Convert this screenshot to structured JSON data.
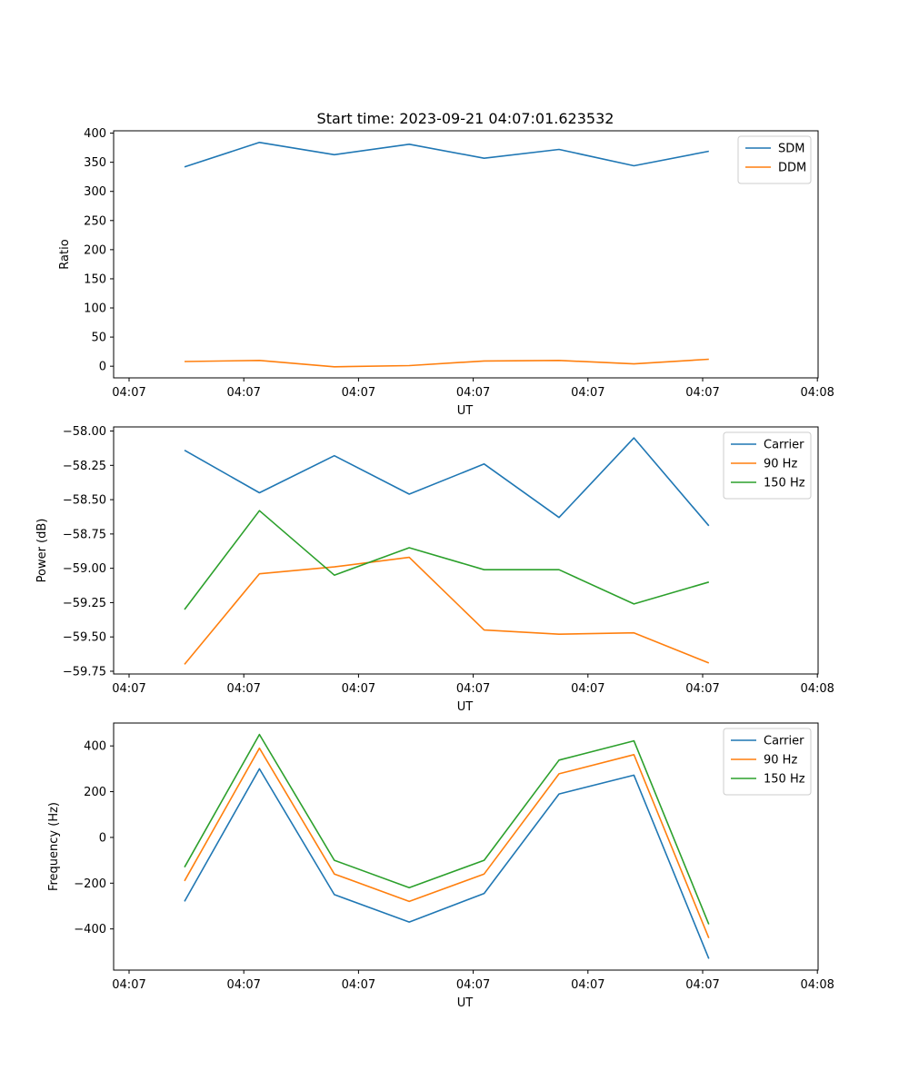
{
  "figure_title": "Start time: 2023-09-21 04:07:01.623532",
  "colors": {
    "c0": "#1f77b4",
    "c1": "#ff7f0e",
    "c2": "#2ca02c"
  },
  "chart_data": [
    {
      "type": "line",
      "title": "Start time: 2023-09-21 04:07:01.623532",
      "xlabel": "UT",
      "ylabel": "Ratio",
      "xticks": [
        "04:07",
        "04:07",
        "04:07",
        "04:07",
        "04:07",
        "04:07",
        "04:08"
      ],
      "xlim": [
        -0.5,
        9.5
      ],
      "ylim": [
        -20,
        404
      ],
      "yticks": [
        0,
        50,
        100,
        150,
        200,
        250,
        300,
        350,
        400
      ],
      "ytick_labels": [
        "0",
        "50",
        "100",
        "150",
        "200",
        "250",
        "300",
        "350",
        "400"
      ],
      "x": [
        0.3,
        1.6,
        2.9,
        4.2,
        5.5,
        6.8,
        8.1,
        9.4
      ],
      "legend": "upper right",
      "series": [
        {
          "name": "SDM",
          "color": "#1f77b4",
          "values": [
            342,
            384,
            363,
            381,
            357,
            372,
            344,
            369
          ]
        },
        {
          "name": "DDM",
          "color": "#ff7f0e",
          "values": [
            8,
            10,
            -1,
            1,
            9,
            10,
            4,
            12
          ]
        }
      ]
    },
    {
      "type": "line",
      "xlabel": "UT",
      "ylabel": "Power (dB)",
      "xticks": [
        "04:07",
        "04:07",
        "04:07",
        "04:07",
        "04:07",
        "04:07",
        "04:08"
      ],
      "xlim": [
        -0.5,
        9.5
      ],
      "ylim": [
        -59.77,
        -57.97
      ],
      "yticks": [
        -58.0,
        -58.25,
        -58.5,
        -58.75,
        -59.0,
        -59.25,
        -59.5,
        -59.75
      ],
      "ytick_labels": [
        "−58.00",
        "−58.25",
        "−58.50",
        "−58.75",
        "−59.00",
        "−59.25",
        "−59.50",
        "−59.75"
      ],
      "x": [
        0.3,
        1.6,
        2.9,
        4.2,
        5.5,
        6.8,
        8.1,
        9.4
      ],
      "legend": "upper right",
      "series": [
        {
          "name": "Carrier",
          "color": "#1f77b4",
          "values": [
            -58.14,
            -58.45,
            -58.18,
            -58.46,
            -58.24,
            -58.63,
            -58.05,
            -58.69
          ]
        },
        {
          "name": "90 Hz",
          "color": "#ff7f0e",
          "values": [
            -59.7,
            -59.04,
            -58.99,
            -58.92,
            -59.45,
            -59.48,
            -59.47,
            -59.69
          ]
        },
        {
          "name": "150 Hz",
          "color": "#2ca02c",
          "values": [
            -59.3,
            -58.58,
            -59.05,
            -58.85,
            -59.01,
            -59.01,
            -59.26,
            -59.1
          ]
        }
      ]
    },
    {
      "type": "line",
      "xlabel": "UT",
      "ylabel": "Frequency (Hz)",
      "xticks": [
        "04:07",
        "04:07",
        "04:07",
        "04:07",
        "04:07",
        "04:07",
        "04:08"
      ],
      "xlim": [
        -0.5,
        9.5
      ],
      "ylim": [
        -580,
        500
      ],
      "yticks": [
        400,
        200,
        0,
        -200,
        -400
      ],
      "ytick_labels": [
        "400",
        "200",
        "0",
        "−200",
        "−400"
      ],
      "x": [
        0.3,
        1.6,
        2.9,
        4.2,
        5.5,
        6.8,
        8.1,
        9.4
      ],
      "legend": "upper right",
      "series": [
        {
          "name": "Carrier",
          "color": "#1f77b4",
          "values": [
            -280,
            300,
            -250,
            -370,
            -245,
            190,
            272,
            -530
          ]
        },
        {
          "name": "90 Hz",
          "color": "#ff7f0e",
          "values": [
            -190,
            390,
            -160,
            -280,
            -160,
            278,
            362,
            -440
          ]
        },
        {
          "name": "150 Hz",
          "color": "#2ca02c",
          "values": [
            -130,
            450,
            -100,
            -220,
            -100,
            338,
            422,
            -380
          ]
        }
      ]
    }
  ]
}
